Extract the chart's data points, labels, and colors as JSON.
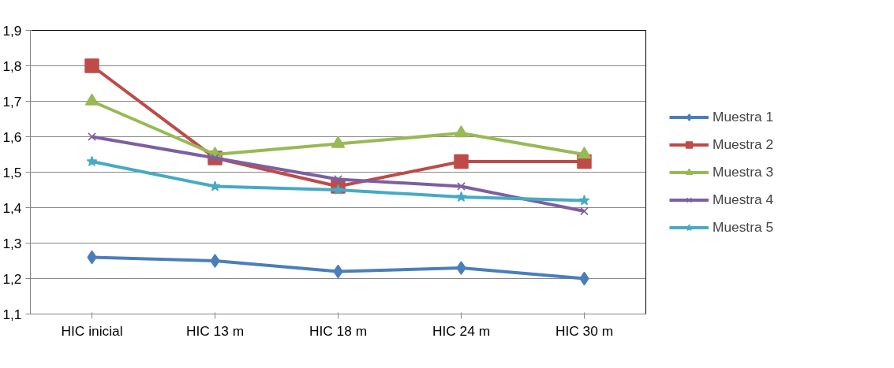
{
  "chart_data": {
    "type": "line",
    "categories": [
      "HIC inicial",
      "HIC 13 m",
      "HIC 18 m",
      "HIC 24 m",
      "HIC 30 m"
    ],
    "series": [
      {
        "name": "Muestra 1",
        "color": "#4a7ebb",
        "marker": "diamond",
        "values": [
          1.26,
          1.25,
          1.22,
          1.23,
          1.2
        ]
      },
      {
        "name": "Muestra 2",
        "color": "#be4b48",
        "marker": "square",
        "values": [
          1.8,
          1.54,
          1.46,
          1.53,
          1.53
        ]
      },
      {
        "name": "Muestra 3",
        "color": "#98b954",
        "marker": "triangle",
        "values": [
          1.7,
          1.55,
          1.58,
          1.61,
          1.55
        ]
      },
      {
        "name": "Muestra 4",
        "color": "#7d5fa0",
        "marker": "cross",
        "values": [
          1.6,
          1.54,
          1.48,
          1.46,
          1.39
        ]
      },
      {
        "name": "Muestra 5",
        "color": "#46aac5",
        "marker": "star",
        "values": [
          1.53,
          1.46,
          1.45,
          1.43,
          1.42
        ]
      }
    ],
    "ylim": [
      1.1,
      1.9
    ],
    "yticks": [
      {
        "value": 1.1,
        "label": "1,1"
      },
      {
        "value": 1.2,
        "label": "1,2"
      },
      {
        "value": 1.3,
        "label": "1,3"
      },
      {
        "value": 1.4,
        "label": "1,4"
      },
      {
        "value": 1.5,
        "label": "1,5"
      },
      {
        "value": 1.6,
        "label": "1,6"
      },
      {
        "value": 1.7,
        "label": "1,7"
      },
      {
        "value": 1.8,
        "label": "1,8"
      },
      {
        "value": 1.9,
        "label": "1,9"
      }
    ],
    "grid": "y",
    "legend": "right",
    "line_style": "solid"
  }
}
